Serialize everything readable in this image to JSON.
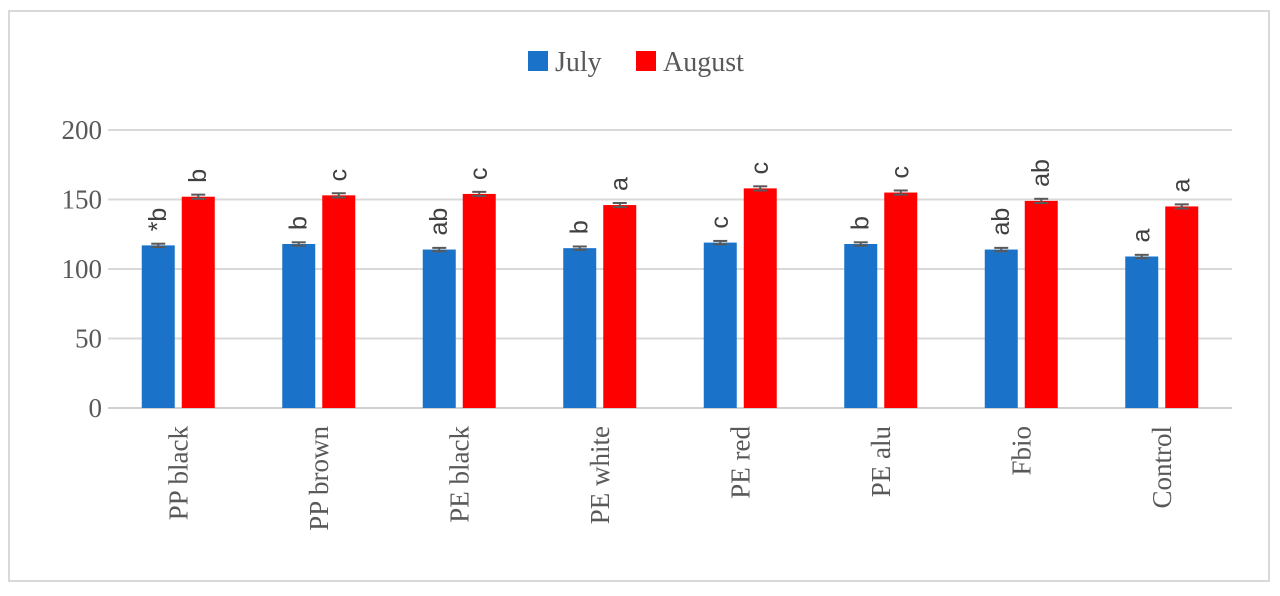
{
  "chart_data": {
    "type": "bar",
    "title": "",
    "xlabel": "",
    "ylabel": "",
    "ylim": [
      0,
      200
    ],
    "yticks": [
      0,
      50,
      100,
      150,
      200
    ],
    "grid": true,
    "legend_position": "top-center",
    "categories": [
      "PP black",
      "PP brown",
      "PE black",
      "PE white",
      "PE red",
      "PE alu",
      "Fbio",
      "Control"
    ],
    "series": [
      {
        "name": "July",
        "color": "#1a73c9",
        "values": [
          117,
          118,
          114,
          115,
          119,
          118,
          114,
          109
        ],
        "error": [
          1.2,
          1.2,
          1.2,
          1.2,
          1.2,
          1.2,
          1.2,
          1.2
        ],
        "labels": [
          "*b",
          "b",
          "ab",
          "b",
          "c",
          "b",
          "ab",
          "a"
        ]
      },
      {
        "name": "August",
        "color": "#ff0000",
        "values": [
          152,
          153,
          154,
          146,
          158,
          155,
          149,
          145
        ],
        "error": [
          1.5,
          1.5,
          1.5,
          1.5,
          1.5,
          1.5,
          1.5,
          1.5
        ],
        "labels": [
          "b",
          "c",
          "c",
          "a",
          "c",
          "c",
          "ab",
          "a"
        ]
      }
    ]
  }
}
